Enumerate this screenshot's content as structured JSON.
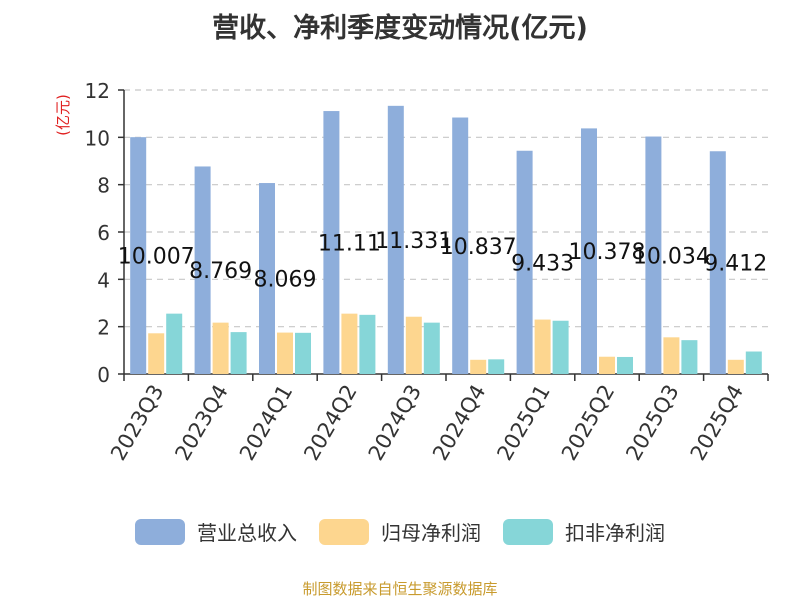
{
  "chart_data": {
    "type": "bar",
    "title": "营收、净利季度变动情况(亿元)",
    "ylabel": "(亿元)",
    "xlabel": "",
    "ylim": [
      0,
      12
    ],
    "yticks": [
      0,
      2,
      4,
      6,
      8,
      10,
      12
    ],
    "grid": true,
    "legend_position": "bottom",
    "categories": [
      "2023Q3",
      "2023Q4",
      "2024Q1",
      "2024Q2",
      "2024Q3",
      "2024Q4",
      "2025Q1",
      "2025Q2",
      "2025Q3",
      "2025Q4"
    ],
    "series": [
      {
        "name": "营业总收入",
        "color": "#8eaedb",
        "values": [
          10.007,
          8.769,
          8.069,
          11.11,
          11.331,
          10.837,
          9.433,
          10.378,
          10.034,
          9.412
        ],
        "labels": [
          "10.007",
          "8.769",
          "8.069",
          "11.11",
          "11.331",
          "10.837",
          "9.433",
          "10.378",
          "10.034",
          "9.412"
        ]
      },
      {
        "name": "归母净利润",
        "color": "#fdd68f",
        "values": [
          1.72,
          2.17,
          1.75,
          2.55,
          2.42,
          0.6,
          2.3,
          0.73,
          1.55,
          0.6
        ]
      },
      {
        "name": "扣非净利润",
        "color": "#86d6d8",
        "values": [
          2.55,
          1.77,
          1.74,
          2.5,
          2.17,
          0.62,
          2.25,
          0.72,
          1.43,
          0.95
        ]
      }
    ]
  },
  "source": "制图数据来自恒生聚源数据库"
}
